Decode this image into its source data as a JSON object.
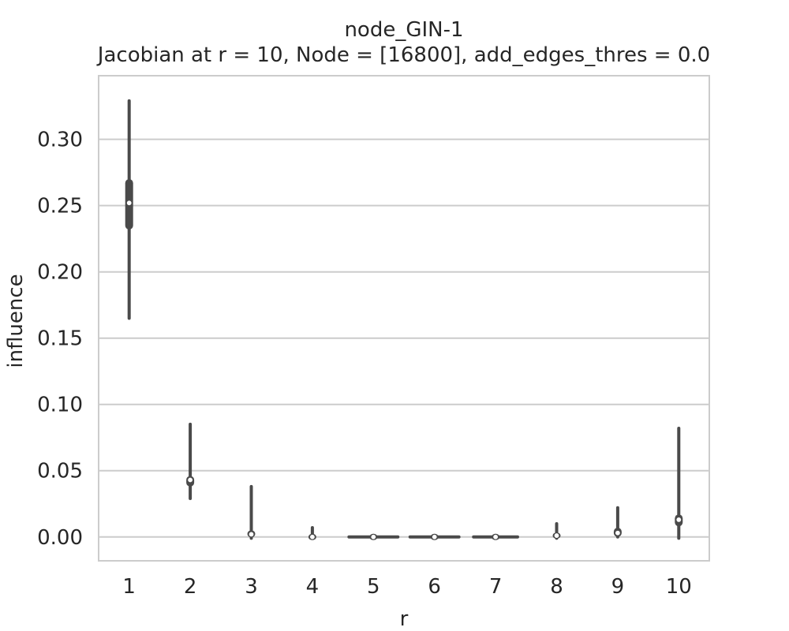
{
  "chart_data": {
    "type": "violin",
    "title": "node_GIN-1",
    "subtitle": "Jacobian at r = 10, Node = [16800], add_edges_thres = 0.0",
    "xlabel": "r",
    "ylabel": "influence",
    "categories": [
      "1",
      "2",
      "3",
      "4",
      "5",
      "6",
      "7",
      "8",
      "9",
      "10"
    ],
    "ylim": [
      -0.018,
      0.348
    ],
    "yticks": [
      0.0,
      0.05,
      0.1,
      0.15,
      0.2,
      0.25,
      0.3
    ],
    "ytick_labels": [
      "0.00",
      "0.05",
      "0.10",
      "0.15",
      "0.20",
      "0.25",
      "0.30"
    ],
    "grid": true,
    "series": [
      {
        "values": [
          {
            "category": "1",
            "min": 0.165,
            "q1": 0.232,
            "median": 0.252,
            "q3": 0.27,
            "max": 0.329
          },
          {
            "category": "2",
            "min": 0.029,
            "q1": 0.038,
            "median": 0.043,
            "q3": 0.046,
            "max": 0.085
          },
          {
            "category": "3",
            "min": -0.001,
            "q1": 0.0,
            "median": 0.002,
            "q3": 0.005,
            "max": 0.038
          },
          {
            "category": "4",
            "min": -0.001,
            "q1": -0.001,
            "median": 0.0,
            "q3": 0.002,
            "max": 0.007
          },
          {
            "category": "5",
            "min": 0.0,
            "q1": 0.0,
            "median": 0.0,
            "q3": 0.0,
            "max": 0.0,
            "width": 0.8
          },
          {
            "category": "6",
            "min": 0.0,
            "q1": 0.0,
            "median": 0.0,
            "q3": 0.0,
            "max": 0.0,
            "width": 0.8
          },
          {
            "category": "7",
            "min": 0.0,
            "q1": 0.0,
            "median": 0.0,
            "q3": 0.0,
            "max": 0.0,
            "width": 0.72
          },
          {
            "category": "8",
            "min": -0.001,
            "q1": -0.001,
            "median": 0.001,
            "q3": 0.002,
            "max": 0.01
          },
          {
            "category": "9",
            "min": 0.0,
            "q1": 0.0,
            "median": 0.003,
            "q3": 0.007,
            "max": 0.022
          },
          {
            "category": "10",
            "min": -0.001,
            "q1": 0.008,
            "median": 0.013,
            "q3": 0.017,
            "max": 0.082
          }
        ]
      }
    ],
    "colors": {
      "mark": "#4a4a4a",
      "median": "#ffffff",
      "grid": "#cccccc",
      "frame": "#cccccc",
      "text": "#262626"
    }
  }
}
